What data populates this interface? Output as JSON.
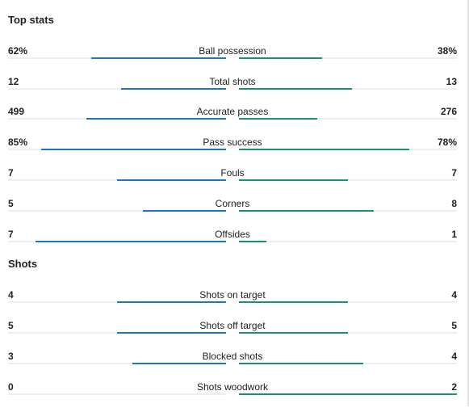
{
  "sections": [
    {
      "title": "Top stats",
      "stats": [
        {
          "label": "Ball possession",
          "home": "62%",
          "away": "38%",
          "home_fill": 0.62,
          "away_fill": 0.38
        },
        {
          "label": "Total shots",
          "home": "12",
          "away": "13",
          "home_fill": 0.48,
          "away_fill": 0.52
        },
        {
          "label": "Accurate passes",
          "home": "499",
          "away": "276",
          "home_fill": 0.64,
          "away_fill": 0.36
        },
        {
          "label": "Pass success",
          "home": "85%",
          "away": "78%",
          "home_fill": 0.85,
          "away_fill": 0.78
        },
        {
          "label": "Fouls",
          "home": "7",
          "away": "7",
          "home_fill": 0.5,
          "away_fill": 0.5
        },
        {
          "label": "Corners",
          "home": "5",
          "away": "8",
          "home_fill": 0.38,
          "away_fill": 0.62
        },
        {
          "label": "Offsides",
          "home": "7",
          "away": "1",
          "home_fill": 0.875,
          "away_fill": 0.125
        }
      ]
    },
    {
      "title": "Shots",
      "stats": [
        {
          "label": "Shots on target",
          "home": "4",
          "away": "4",
          "home_fill": 0.5,
          "away_fill": 0.5
        },
        {
          "label": "Shots off target",
          "home": "5",
          "away": "5",
          "home_fill": 0.5,
          "away_fill": 0.5
        },
        {
          "label": "Blocked shots",
          "home": "3",
          "away": "4",
          "home_fill": 0.43,
          "away_fill": 0.57
        },
        {
          "label": "Shots woodwork",
          "home": "0",
          "away": "2",
          "home_fill": 0.0,
          "away_fill": 1.0
        }
      ]
    }
  ],
  "colors": {
    "home_bar": "#1f77c4",
    "away_bar": "#1a9460",
    "track": "#eeeeee"
  }
}
